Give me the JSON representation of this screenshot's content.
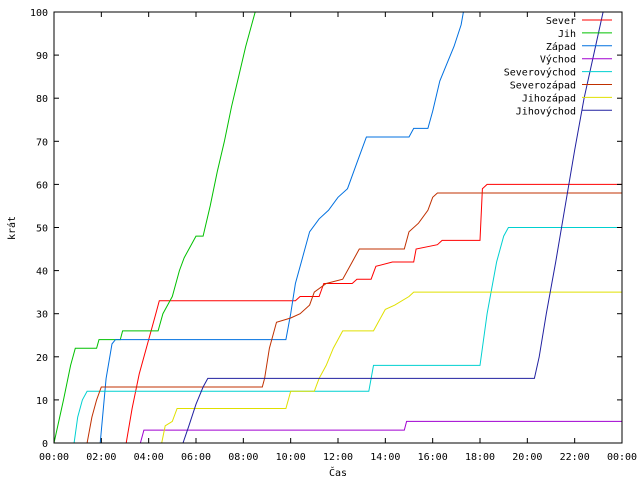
{
  "chart_data": {
    "type": "line",
    "xlabel": "Čas",
    "ylabel": "krát",
    "xlim": [
      0,
      24
    ],
    "ylim": [
      0,
      100
    ],
    "x_ticks": [
      {
        "v": 0,
        "label": "00:00"
      },
      {
        "v": 2,
        "label": "02:00"
      },
      {
        "v": 4,
        "label": "04:00"
      },
      {
        "v": 6,
        "label": "06:00"
      },
      {
        "v": 8,
        "label": "08:00"
      },
      {
        "v": 10,
        "label": "10:00"
      },
      {
        "v": 12,
        "label": "12:00"
      },
      {
        "v": 14,
        "label": "14:00"
      },
      {
        "v": 16,
        "label": "16:00"
      },
      {
        "v": 18,
        "label": "18:00"
      },
      {
        "v": 20,
        "label": "20:00"
      },
      {
        "v": 22,
        "label": "22:00"
      },
      {
        "v": 24,
        "label": "00:00"
      }
    ],
    "y_ticks": [
      {
        "v": 0,
        "label": "0"
      },
      {
        "v": 10,
        "label": "10"
      },
      {
        "v": 20,
        "label": "20"
      },
      {
        "v": 30,
        "label": "30"
      },
      {
        "v": 40,
        "label": "40"
      },
      {
        "v": 50,
        "label": "50"
      },
      {
        "v": 60,
        "label": "60"
      },
      {
        "v": 70,
        "label": "70"
      },
      {
        "v": 80,
        "label": "80"
      },
      {
        "v": 90,
        "label": "90"
      },
      {
        "v": 100,
        "label": "100"
      }
    ],
    "grid": false,
    "legend_position": "top-right",
    "series": [
      {
        "name": "Sever",
        "color": "#ff0000",
        "points": [
          [
            3.05,
            0
          ],
          [
            3.3,
            8
          ],
          [
            3.6,
            16
          ],
          [
            3.9,
            22
          ],
          [
            4.3,
            30
          ],
          [
            4.45,
            33
          ],
          [
            10.2,
            33
          ],
          [
            10.4,
            34
          ],
          [
            11.2,
            34
          ],
          [
            11.4,
            37
          ],
          [
            12.6,
            37
          ],
          [
            12.8,
            38
          ],
          [
            13.4,
            38
          ],
          [
            13.6,
            41
          ],
          [
            14.3,
            42
          ],
          [
            15.2,
            42
          ],
          [
            15.3,
            45
          ],
          [
            16.2,
            46
          ],
          [
            16.4,
            47
          ],
          [
            18.0,
            47
          ],
          [
            18.1,
            59
          ],
          [
            18.3,
            60
          ],
          [
            24,
            60
          ]
        ]
      },
      {
        "name": "Jih",
        "color": "#00c000",
        "points": [
          [
            0,
            0
          ],
          [
            0.4,
            10
          ],
          [
            0.7,
            18
          ],
          [
            0.9,
            22
          ],
          [
            1.8,
            22
          ],
          [
            1.9,
            24
          ],
          [
            2.8,
            24
          ],
          [
            2.9,
            26
          ],
          [
            4.4,
            26
          ],
          [
            4.6,
            30
          ],
          [
            4.8,
            32
          ],
          [
            5.0,
            34
          ],
          [
            5.3,
            40
          ],
          [
            5.5,
            43
          ],
          [
            5.8,
            46
          ],
          [
            6.0,
            48
          ],
          [
            6.3,
            48
          ],
          [
            6.6,
            55
          ],
          [
            6.9,
            63
          ],
          [
            7.2,
            70
          ],
          [
            7.5,
            78
          ],
          [
            7.8,
            85
          ],
          [
            8.1,
            92
          ],
          [
            8.4,
            98
          ],
          [
            8.5,
            100
          ]
        ]
      },
      {
        "name": "Západ",
        "color": "#0070e0",
        "points": [
          [
            1.95,
            0
          ],
          [
            2.2,
            15
          ],
          [
            2.45,
            23
          ],
          [
            2.6,
            24
          ],
          [
            9.8,
            24
          ],
          [
            10.0,
            30
          ],
          [
            10.2,
            37
          ],
          [
            10.5,
            43
          ],
          [
            10.8,
            49
          ],
          [
            11.2,
            52
          ],
          [
            11.6,
            54
          ],
          [
            12.0,
            57
          ],
          [
            12.4,
            59
          ],
          [
            12.8,
            65
          ],
          [
            13.2,
            71
          ],
          [
            15.0,
            71
          ],
          [
            15.2,
            73
          ],
          [
            15.8,
            73
          ],
          [
            16.0,
            77
          ],
          [
            16.3,
            84
          ],
          [
            16.6,
            88
          ],
          [
            16.9,
            92
          ],
          [
            17.2,
            97
          ],
          [
            17.3,
            100
          ]
        ]
      },
      {
        "name": "Východ",
        "color": "#a000d0",
        "points": [
          [
            3.65,
            0
          ],
          [
            3.8,
            3
          ],
          [
            14.8,
            3
          ],
          [
            14.9,
            5
          ],
          [
            24,
            5
          ]
        ]
      },
      {
        "name": "Severovýchod",
        "color": "#00d0d0",
        "points": [
          [
            0.85,
            0
          ],
          [
            1.0,
            6
          ],
          [
            1.2,
            10
          ],
          [
            1.4,
            12
          ],
          [
            13.3,
            12
          ],
          [
            13.5,
            18
          ],
          [
            18.0,
            18
          ],
          [
            18.3,
            30
          ],
          [
            18.7,
            42
          ],
          [
            19.0,
            48
          ],
          [
            19.2,
            50
          ],
          [
            24,
            50
          ]
        ]
      },
      {
        "name": "Severozápad",
        "color": "#c03000",
        "points": [
          [
            1.4,
            0
          ],
          [
            1.6,
            6
          ],
          [
            1.8,
            10
          ],
          [
            2.0,
            13
          ],
          [
            8.8,
            13
          ],
          [
            8.9,
            15
          ],
          [
            9.1,
            22
          ],
          [
            9.4,
            28
          ],
          [
            10.0,
            29
          ],
          [
            10.4,
            30
          ],
          [
            10.8,
            32
          ],
          [
            11.0,
            35
          ],
          [
            11.5,
            37
          ],
          [
            12.2,
            38
          ],
          [
            12.6,
            42
          ],
          [
            12.9,
            45
          ],
          [
            14.8,
            45
          ],
          [
            15.0,
            49
          ],
          [
            15.4,
            51
          ],
          [
            15.8,
            54
          ],
          [
            16.0,
            57
          ],
          [
            16.2,
            58
          ],
          [
            24,
            58
          ]
        ]
      },
      {
        "name": "Jihozápad",
        "color": "#e0e000",
        "points": [
          [
            4.55,
            0
          ],
          [
            4.7,
            4
          ],
          [
            5.0,
            5
          ],
          [
            5.2,
            8
          ],
          [
            9.8,
            8
          ],
          [
            10.0,
            12
          ],
          [
            11.0,
            12
          ],
          [
            11.2,
            15
          ],
          [
            11.5,
            18
          ],
          [
            11.8,
            22
          ],
          [
            12.2,
            26
          ],
          [
            13.5,
            26
          ],
          [
            13.7,
            28
          ],
          [
            14.0,
            31
          ],
          [
            14.4,
            32
          ],
          [
            15.0,
            34
          ],
          [
            15.2,
            35
          ],
          [
            24,
            35
          ]
        ]
      },
      {
        "name": "Jihovýchod",
        "color": "#2020a0",
        "points": [
          [
            5.45,
            0
          ],
          [
            5.7,
            4
          ],
          [
            6.0,
            9
          ],
          [
            6.3,
            13
          ],
          [
            6.5,
            15
          ],
          [
            20.3,
            15
          ],
          [
            20.5,
            20
          ],
          [
            20.8,
            30
          ],
          [
            21.2,
            42
          ],
          [
            21.6,
            55
          ],
          [
            22.0,
            68
          ],
          [
            22.4,
            80
          ],
          [
            22.8,
            90
          ],
          [
            23.2,
            100
          ]
        ]
      }
    ]
  }
}
